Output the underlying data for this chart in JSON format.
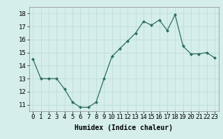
{
  "x": [
    0,
    1,
    2,
    3,
    4,
    5,
    6,
    7,
    8,
    9,
    10,
    11,
    12,
    13,
    14,
    15,
    16,
    17,
    18,
    19,
    20,
    21,
    22,
    23
  ],
  "y": [
    14.5,
    13.0,
    13.0,
    13.0,
    12.2,
    11.2,
    10.8,
    10.8,
    11.2,
    13.0,
    14.7,
    15.3,
    15.9,
    16.5,
    17.4,
    17.1,
    17.5,
    16.7,
    17.9,
    15.5,
    14.9,
    14.9,
    15.0,
    14.6
  ],
  "xlabel": "Humidex (Indice chaleur)",
  "ylim": [
    10.5,
    18.5
  ],
  "xlim": [
    -0.5,
    23.5
  ],
  "yticks": [
    11,
    12,
    13,
    14,
    15,
    16,
    17,
    18
  ],
  "xticks": [
    0,
    1,
    2,
    3,
    4,
    5,
    6,
    7,
    8,
    9,
    10,
    11,
    12,
    13,
    14,
    15,
    16,
    17,
    18,
    19,
    20,
    21,
    22,
    23
  ],
  "line_color": "#2d6e5e",
  "marker_color": "#2d6e5e",
  "bg_color": "#d5eeeb",
  "grid_color": "#b8dbd8",
  "axis_label_fontsize": 7,
  "tick_fontsize": 6.5
}
